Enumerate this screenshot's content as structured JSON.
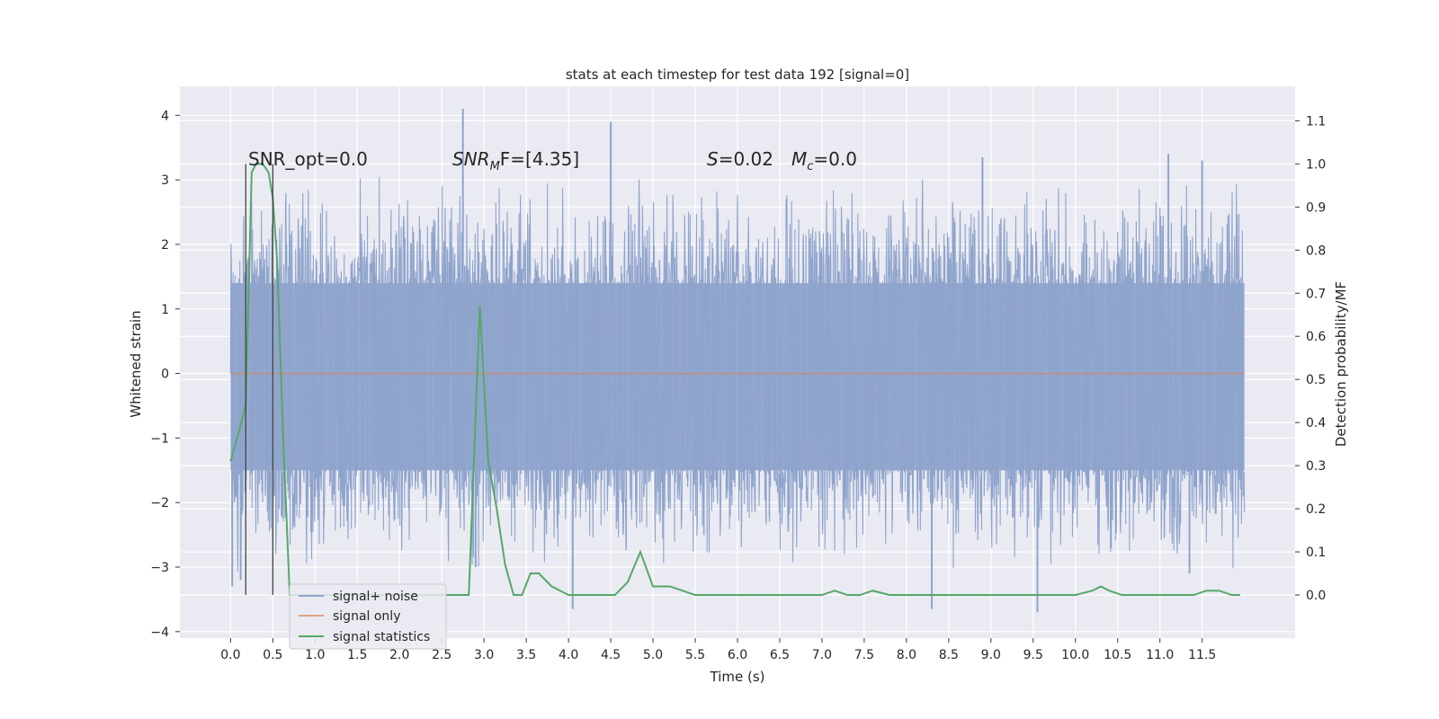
{
  "chart_data": {
    "type": "line",
    "title": "stats at each timestep for test data 192 [signal=0]",
    "xlabel": "Time (s)",
    "ylabel": "Whitened strain",
    "y2label": "Detection probability/MF",
    "xlim": [
      -0.6,
      12.6
    ],
    "ylim": [
      -4.1,
      4.45
    ],
    "y2lim": [
      -0.1,
      1.18
    ],
    "xticks": [
      "0.0",
      "0.5",
      "1.0",
      "1.5",
      "2.0",
      "2.5",
      "3.0",
      "3.5",
      "4.0",
      "4.5",
      "5.0",
      "5.5",
      "6.0",
      "6.5",
      "7.0",
      "7.5",
      "8.0",
      "8.5",
      "9.0",
      "9.5",
      "10.0",
      "10.5",
      "11.0",
      "11.5"
    ],
    "yticks": [
      "4",
      "3",
      "2",
      "1",
      "0",
      "−1",
      "−2",
      "−3",
      "−4"
    ],
    "y2ticks": [
      "1.1",
      "1.0",
      "0.9",
      "0.8",
      "0.7",
      "0.6",
      "0.5",
      "0.4",
      "0.3",
      "0.2",
      "0.1",
      "0.0"
    ],
    "grid": true,
    "legend_position": "lower-left",
    "annotations": {
      "snr_opt": "SNR_opt=0.0",
      "snr_mf_sym": "SNR",
      "snr_mf_sub": "M",
      "snr_mf_rest": "F=[4.35]",
      "s_sym": "S",
      "s_rest": "=0.02",
      "mc_sym": "M",
      "mc_sub": "c",
      "mc_rest": "=0.0"
    },
    "vlines_x": [
      0.18,
      0.5
    ],
    "series": [
      {
        "name": "signal+ noise",
        "color": "#8fa4cc",
        "x_range": [
          0.0,
          12.0
        ],
        "envelope": [
          1.4,
          -1.5
        ],
        "peaks": [
          [
            0.02,
            -3.3
          ],
          [
            0.12,
            -3.2
          ],
          [
            2.75,
            4.1
          ],
          [
            2.9,
            -3.0
          ],
          [
            4.5,
            3.9
          ],
          [
            4.05,
            -3.65
          ],
          [
            8.3,
            -3.65
          ],
          [
            9.55,
            -3.7
          ],
          [
            11.1,
            3.4
          ],
          [
            11.5,
            3.3
          ],
          [
            8.9,
            3.35
          ],
          [
            11.35,
            -3.1
          ]
        ]
      },
      {
        "name": "signal only",
        "color": "#dd8452",
        "x": [
          0.0,
          12.0
        ],
        "y": [
          0.0,
          0.0
        ]
      },
      {
        "name": "signal statistics",
        "color": "#55a868",
        "axis": "right",
        "x": [
          0.0,
          0.1,
          0.18,
          0.25,
          0.3,
          0.38,
          0.45,
          0.5,
          0.55,
          0.62,
          0.7,
          0.8,
          1.5,
          2.5,
          2.82,
          2.95,
          3.05,
          3.15,
          3.25,
          3.35,
          3.45,
          3.55,
          3.65,
          3.8,
          4.0,
          4.2,
          4.4,
          4.55,
          4.7,
          4.85,
          5.0,
          5.2,
          5.5,
          6.0,
          6.5,
          7.0,
          7.15,
          7.3,
          7.45,
          7.6,
          7.8,
          8.5,
          9.0,
          9.5,
          10.0,
          10.2,
          10.3,
          10.4,
          10.55,
          10.8,
          11.0,
          11.2,
          11.4,
          11.55,
          11.7,
          11.85,
          11.95
        ],
        "y": [
          0.31,
          0.38,
          0.44,
          0.98,
          1.0,
          1.0,
          0.98,
          0.92,
          0.78,
          0.38,
          0.0,
          0.0,
          0.0,
          0.0,
          0.0,
          0.67,
          0.31,
          0.2,
          0.07,
          0.0,
          0.0,
          0.05,
          0.05,
          0.02,
          0.0,
          0.0,
          0.0,
          0.0,
          0.03,
          0.1,
          0.02,
          0.02,
          0.0,
          0.0,
          0.0,
          0.0,
          0.01,
          0.0,
          0.0,
          0.01,
          0.0,
          0.0,
          0.0,
          0.0,
          0.0,
          0.01,
          0.02,
          0.01,
          0.0,
          0.0,
          0.0,
          0.0,
          0.0,
          0.01,
          0.01,
          0.0,
          0.0
        ]
      }
    ]
  }
}
